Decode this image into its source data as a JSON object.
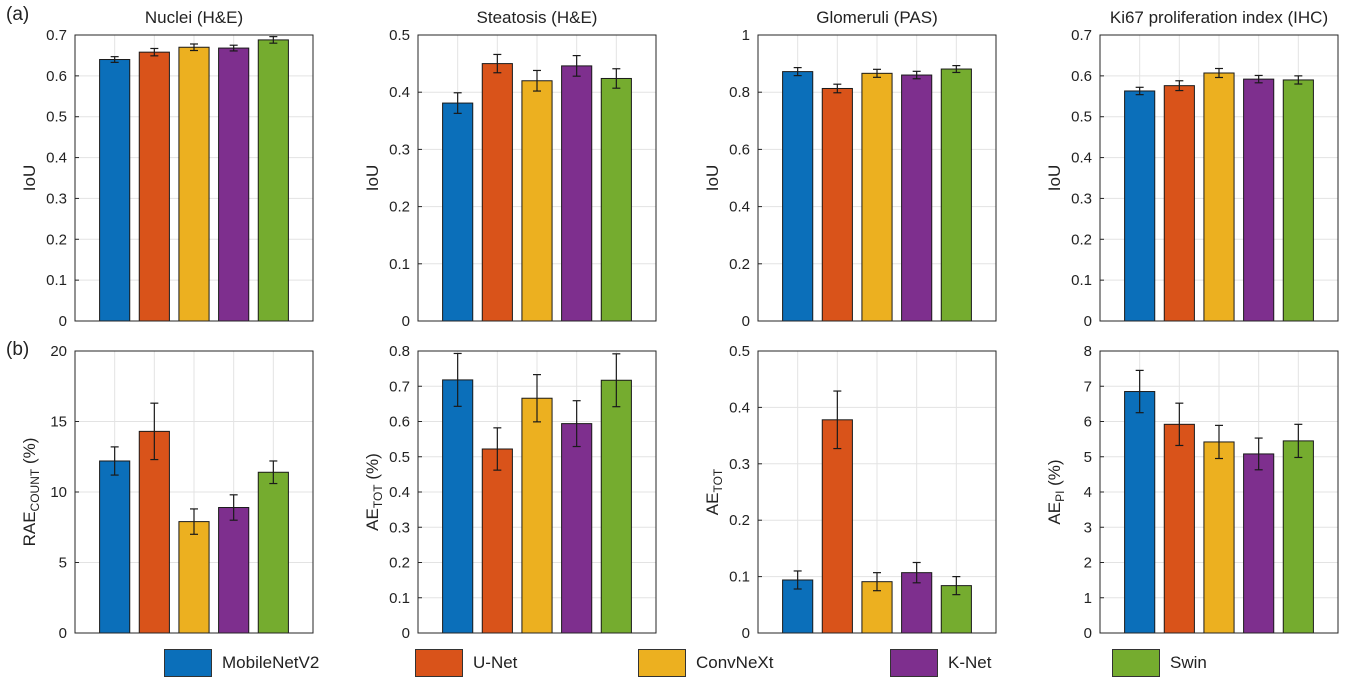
{
  "panel_labels": {
    "a": "(a)",
    "b": "(b)"
  },
  "colors": {
    "MobileNetV2": "#0b6fba",
    "U-Net": "#d9531a",
    "ConvNeXt": "#ecb020",
    "K-Net": "#7e2f8e",
    "Swin": "#75ac2f",
    "grid": "#e3e3e3",
    "axis": "#262626"
  },
  "legend": [
    {
      "label": "MobileNetV2",
      "color_key": "MobileNetV2"
    },
    {
      "label": "U-Net",
      "color_key": "U-Net"
    },
    {
      "label": "ConvNeXt",
      "color_key": "ConvNeXt"
    },
    {
      "label": "K-Net",
      "color_key": "K-Net"
    },
    {
      "label": "Swin",
      "color_key": "Swin"
    }
  ],
  "chart_data": [
    {
      "type": "bar",
      "title": "Nuclei (H&E)",
      "ylabel": "IoU",
      "ylim": [
        0,
        0.7
      ],
      "yticks": [
        "0",
        "0.1",
        "0.2",
        "0.3",
        "0.4",
        "0.5",
        "0.6",
        "0.7"
      ],
      "categories": [
        "MobileNetV2",
        "U-Net",
        "ConvNeXt",
        "K-Net",
        "Swin"
      ],
      "values": [
        0.64,
        0.658,
        0.67,
        0.668,
        0.688
      ],
      "errors": [
        0.007,
        0.009,
        0.008,
        0.007,
        0.008
      ],
      "grid": true
    },
    {
      "type": "bar",
      "title": "Steatosis (H&E)",
      "ylabel": "IoU",
      "ylim": [
        0,
        0.5
      ],
      "yticks": [
        "0",
        "0.1",
        "0.2",
        "0.3",
        "0.4",
        "0.5"
      ],
      "categories": [
        "MobileNetV2",
        "U-Net",
        "ConvNeXt",
        "K-Net",
        "Swin"
      ],
      "values": [
        0.381,
        0.45,
        0.42,
        0.446,
        0.424
      ],
      "errors": [
        0.018,
        0.016,
        0.018,
        0.018,
        0.017
      ],
      "grid": true
    },
    {
      "type": "bar",
      "title": "Glomeruli (PAS)",
      "ylabel": "IoU",
      "ylim": [
        0,
        1
      ],
      "yticks": [
        "0",
        "0.2",
        "0.4",
        "0.6",
        "0.8",
        "1"
      ],
      "categories": [
        "MobileNetV2",
        "U-Net",
        "ConvNeXt",
        "K-Net",
        "Swin"
      ],
      "values": [
        0.872,
        0.813,
        0.866,
        0.86,
        0.881
      ],
      "errors": [
        0.014,
        0.015,
        0.014,
        0.013,
        0.012
      ],
      "grid": true
    },
    {
      "type": "bar",
      "title": "Ki67 proliferation index (IHC)",
      "ylabel": "IoU",
      "ylim": [
        0,
        0.7
      ],
      "yticks": [
        "0",
        "0.1",
        "0.2",
        "0.3",
        "0.4",
        "0.5",
        "0.6",
        "0.7"
      ],
      "categories": [
        "MobileNetV2",
        "U-Net",
        "ConvNeXt",
        "K-Net",
        "Swin"
      ],
      "values": [
        0.563,
        0.576,
        0.607,
        0.592,
        0.59
      ],
      "errors": [
        0.009,
        0.012,
        0.011,
        0.009,
        0.01
      ],
      "grid": true
    },
    {
      "type": "bar",
      "title": "",
      "ylabel": "RAE",
      "ylabel_sub": "COUNT",
      "ylabel_suffix": " (%)",
      "ylim": [
        0,
        20
      ],
      "yticks": [
        "0",
        "5",
        "10",
        "15",
        "20"
      ],
      "categories": [
        "MobileNetV2",
        "U-Net",
        "ConvNeXt",
        "K-Net",
        "Swin"
      ],
      "values": [
        12.2,
        14.3,
        7.9,
        8.9,
        11.4
      ],
      "errors": [
        1.0,
        2.0,
        0.9,
        0.9,
        0.8
      ],
      "grid": true
    },
    {
      "type": "bar",
      "title": "",
      "ylabel": "AE",
      "ylabel_sub": "TOT",
      "ylabel_suffix": " (%)",
      "ylim": [
        0,
        0.8
      ],
      "yticks": [
        "0",
        "0.1",
        "0.2",
        "0.3",
        "0.4",
        "0.5",
        "0.6",
        "0.7",
        "0.8"
      ],
      "categories": [
        "MobileNetV2",
        "U-Net",
        "ConvNeXt",
        "K-Net",
        "Swin"
      ],
      "values": [
        0.718,
        0.522,
        0.666,
        0.594,
        0.717
      ],
      "errors": [
        0.075,
        0.06,
        0.067,
        0.065,
        0.075
      ],
      "grid": true
    },
    {
      "type": "bar",
      "title": "",
      "ylabel": "AE",
      "ylabel_sub": "TOT",
      "ylabel_suffix": "",
      "ylim": [
        0,
        0.5
      ],
      "yticks": [
        "0",
        "0.1",
        "0.2",
        "0.3",
        "0.4",
        "0.5"
      ],
      "categories": [
        "MobileNetV2",
        "U-Net",
        "ConvNeXt",
        "K-Net",
        "Swin"
      ],
      "values": [
        0.094,
        0.378,
        0.091,
        0.107,
        0.084
      ],
      "errors": [
        0.016,
        0.051,
        0.016,
        0.018,
        0.016
      ],
      "grid": true
    },
    {
      "type": "bar",
      "title": "",
      "ylabel": "AE",
      "ylabel_sub": "PI",
      "ylabel_suffix": " (%)",
      "ylim": [
        0,
        8
      ],
      "yticks": [
        "0",
        "1",
        "2",
        "3",
        "4",
        "5",
        "6",
        "7",
        "8"
      ],
      "categories": [
        "MobileNetV2",
        "U-Net",
        "ConvNeXt",
        "K-Net",
        "Swin"
      ],
      "values": [
        6.85,
        5.92,
        5.42,
        5.08,
        5.45
      ],
      "errors": [
        0.6,
        0.6,
        0.47,
        0.45,
        0.47
      ],
      "grid": true
    }
  ]
}
